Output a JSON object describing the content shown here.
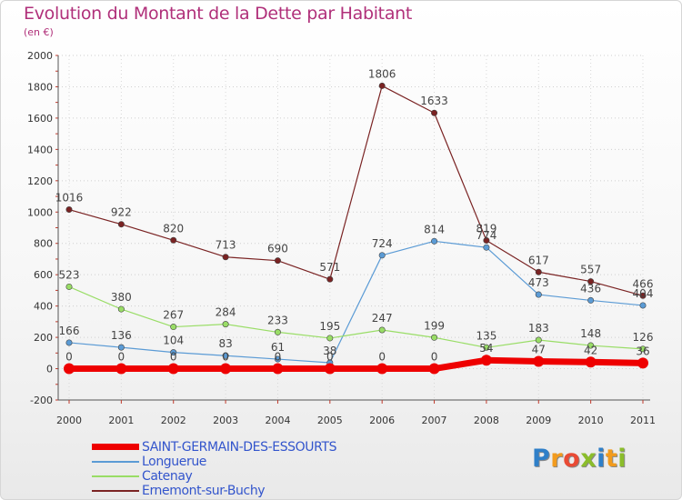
{
  "title": "Evolution du Montant de la Dette par Habitant",
  "subtitle": "(en €)",
  "logo": {
    "letters": [
      {
        "ch": "P",
        "color": "#2f7fc8"
      },
      {
        "ch": "r",
        "color": "#f29b1d"
      },
      {
        "ch": "o",
        "color": "#e94b35"
      },
      {
        "ch": "x",
        "color": "#8bbd2b"
      },
      {
        "ch": "i",
        "color": "#2f7fc8"
      },
      {
        "ch": "t",
        "color": "#f29b1d"
      },
      {
        "ch": "i",
        "color": "#8bbd2b"
      }
    ]
  },
  "chart_data": {
    "type": "line",
    "title": "Evolution du Montant de la Dette par Habitant",
    "subtitle": "(en €)",
    "xlabel": "",
    "ylabel": "",
    "categories": [
      "2000",
      "2001",
      "2002",
      "2003",
      "2004",
      "2005",
      "2006",
      "2007",
      "2008",
      "2009",
      "2010",
      "2011"
    ],
    "ylim": [
      -200,
      2000
    ],
    "yticks": [
      -200,
      0,
      200,
      400,
      600,
      800,
      1000,
      1200,
      1400,
      1600,
      1800,
      2000
    ],
    "legend_position": "bottom-left",
    "series": [
      {
        "name": "SAINT-GERMAIN-DES-ESSOURTS",
        "color": "#ee0000",
        "values": [
          0,
          0,
          0,
          0,
          0,
          0,
          0,
          0,
          54,
          47,
          42,
          36
        ],
        "labels": [
          "0",
          "0",
          "0",
          "0",
          "0",
          "0",
          "0",
          "0",
          "54",
          "47",
          "42",
          "36"
        ],
        "thick": true
      },
      {
        "name": "Longuerue",
        "color": "#5b9bd5",
        "values": [
          166,
          136,
          104,
          83,
          61,
          38,
          724,
          814,
          774,
          473,
          436,
          404
        ],
        "labels": [
          "166",
          "136",
          "104",
          "83",
          "61",
          "38",
          "724",
          "814",
          "774",
          "473",
          "436",
          "404"
        ],
        "thick": false
      },
      {
        "name": "Catenay",
        "color": "#99dd66",
        "values": [
          523,
          380,
          267,
          284,
          233,
          195,
          247,
          199,
          135,
          183,
          148,
          126
        ],
        "labels": [
          "523",
          "380",
          "267",
          "284",
          "233",
          "195",
          "247",
          "199",
          "135",
          "183",
          "148",
          "126"
        ],
        "thick": false
      },
      {
        "name": "Ernemont-sur-Buchy",
        "color": "#7a2323",
        "values": [
          1016,
          922,
          820,
          713,
          690,
          571,
          1806,
          1633,
          819,
          617,
          557,
          466
        ],
        "labels": [
          "1016",
          "922",
          "820",
          "713",
          "690",
          "571",
          "1806",
          "1633",
          "819",
          "617",
          "557",
          "466"
        ],
        "thick": false
      }
    ]
  }
}
